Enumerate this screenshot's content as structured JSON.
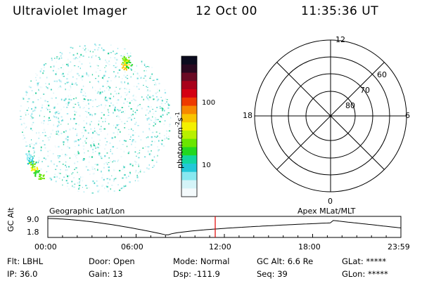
{
  "header": {
    "title": "Ultraviolet Imager",
    "date": "12 Oct 00",
    "time": "11:35:36 UT"
  },
  "colorbar": {
    "axis_label_main": "photon cm",
    "axis_label_sup1": "-2",
    "axis_label_mid": "s",
    "axis_label_sup2": "-1",
    "ticks": [
      "100",
      "10"
    ],
    "colors": [
      "#0b0b1e",
      "#2a0820",
      "#6a0a24",
      "#a8001a",
      "#d40012",
      "#ee3a00",
      "#f78800",
      "#f8c400",
      "#f4f000",
      "#b8f000",
      "#6ae600",
      "#22d820",
      "#12d6a0",
      "#22c8d8",
      "#88e8f0",
      "#d4f4f8",
      "#f4fafc"
    ]
  },
  "polar": {
    "hour_labels": {
      "top": "12",
      "left": "18",
      "right": "6",
      "bottom": "0"
    },
    "lat_labels": [
      "80",
      "70",
      "60"
    ]
  },
  "timeline": {
    "left_title": "Geographic Lat/Lon",
    "right_title": "Apex MLat/MLT",
    "y_axis_label": "GC Alt",
    "y_ticks": [
      "9.0",
      "1.8"
    ],
    "x_ticks": [
      "00:00",
      "06:00",
      "12:00",
      "18:00",
      "23:59"
    ],
    "marker_color": "#e00000"
  },
  "info": {
    "flt_label": "Flt:",
    "flt_value": "LBHL",
    "ip_label": "IP:",
    "ip_value": "36.0",
    "door_label": "Door:",
    "door_value": "Open",
    "gain_label": "Gain:",
    "gain_value": "13",
    "mode_label": "Mode:",
    "mode_value": "Normal",
    "dsp_label": "Dsp:",
    "dsp_value": "-111.9",
    "gcalt_label": "GC Alt:",
    "gcalt_value": "6.6 Re",
    "seq_label": "Seq:",
    "seq_value": "39",
    "glat_label": "GLat:",
    "glat_value": "*****",
    "glon_label": "GLon:",
    "glon_value": "*****"
  }
}
